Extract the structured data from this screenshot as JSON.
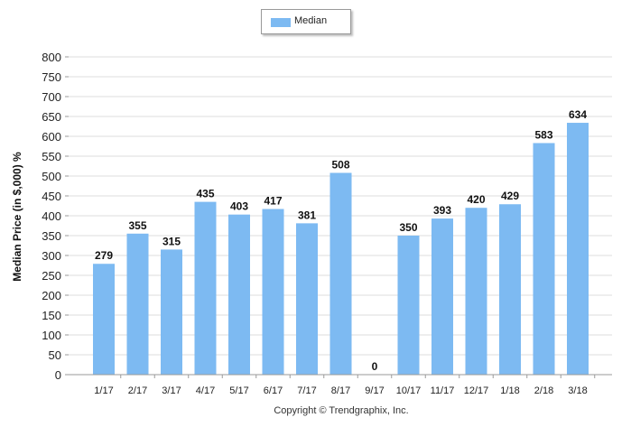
{
  "chart_data": {
    "type": "bar",
    "categories": [
      "1/17",
      "2/17",
      "3/17",
      "4/17",
      "5/17",
      "6/17",
      "7/17",
      "8/17",
      "9/17",
      "10/17",
      "11/17",
      "12/17",
      "1/18",
      "2/18",
      "3/18"
    ],
    "series": [
      {
        "name": "Median",
        "values": [
          279,
          355,
          315,
          435,
          403,
          417,
          381,
          508,
          0,
          350,
          393,
          420,
          429,
          583,
          634
        ]
      }
    ],
    "ylabel": "Median Price (in $,000) %",
    "ylim": [
      0,
      800
    ],
    "yticks": [
      0,
      50,
      100,
      150,
      200,
      250,
      300,
      350,
      400,
      450,
      500,
      550,
      600,
      650,
      700,
      750,
      800
    ],
    "grid": true,
    "legend_position": "top-center",
    "bar_color": "#7dbaf2"
  },
  "footer": {
    "copyright": "Copyright © Trendgraphix, Inc."
  }
}
